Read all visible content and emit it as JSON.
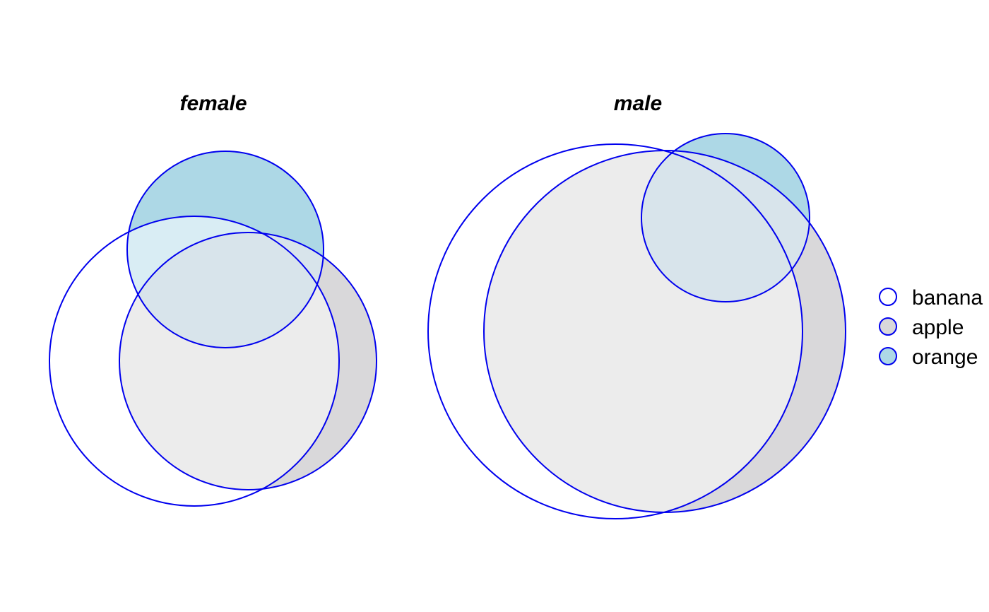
{
  "colors": {
    "stroke": "#0000ee",
    "banana_fill": "#ffffff",
    "apple_fill": "#d9d8da",
    "orange_fill": "#add8e6",
    "apple_orange_overlap": "#d8e4eb",
    "banana_orange_overlap": "#d9edf4",
    "banana_apple_overlap": "#ececec"
  },
  "panels": [
    {
      "title": "female"
    },
    {
      "title": "male"
    }
  ],
  "legend": {
    "items": [
      {
        "label": "banana",
        "fill": "#ffffff"
      },
      {
        "label": "apple",
        "fill": "#d9d8da"
      },
      {
        "label": "orange",
        "fill": "#add8e6"
      }
    ]
  }
}
